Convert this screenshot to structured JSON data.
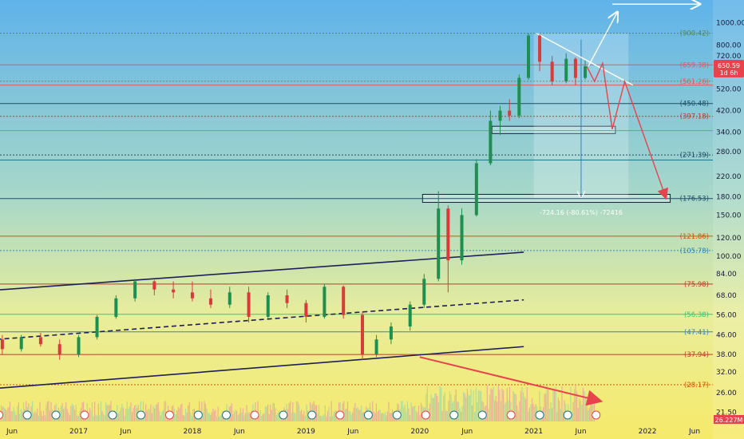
{
  "chart_data": {
    "type": "candlestick",
    "x_axis": {
      "ticks": [
        {
          "label": "Jun",
          "date": "2016-06-01"
        },
        {
          "label": "2017",
          "date": "2017-01-01"
        },
        {
          "label": "Jun",
          "date": "2017-06-01"
        },
        {
          "label": "2018",
          "date": "2018-01-01"
        },
        {
          "label": "Jun",
          "date": "2018-06-01"
        },
        {
          "label": "2019",
          "date": "2019-01-01"
        },
        {
          "label": "Jun",
          "date": "2019-06-01"
        },
        {
          "label": "2020",
          "date": "2020-01-01"
        },
        {
          "label": "Jun",
          "date": "2020-06-01"
        },
        {
          "label": "2021",
          "date": "2021-01-01"
        },
        {
          "label": "Jun",
          "date": "2021-06-01"
        },
        {
          "label": "2022",
          "date": "2022-01-01"
        },
        {
          "label": "Jun",
          "date": "2022-06-01"
        }
      ]
    },
    "y_axis": {
      "scale": "log",
      "range": [
        19,
        1250
      ],
      "ticks": [
        "1000.00",
        "800.00",
        "720.00",
        "520.00",
        "420.00",
        "340.00",
        "280.00",
        "220.00",
        "180.00",
        "150.00",
        "120.00",
        "100.00",
        "84.00",
        "68.00",
        "56.00",
        "46.00",
        "38.00",
        "32.00",
        "26.00",
        "21.50"
      ]
    },
    "price_levels": [
      {
        "value": 900.42,
        "label": "900.42",
        "color": "#4f8a4f",
        "style": "dotted"
      },
      {
        "value": 659.38,
        "label": "659.38",
        "color": "#e05a5a",
        "style": "solid"
      },
      {
        "value": 561.26,
        "label": "561.26",
        "color": "#e05a5a",
        "style": "dotted"
      },
      {
        "value": 540,
        "label": "",
        "color": "#e05a5a",
        "style": "solid"
      },
      {
        "value": 450.48,
        "label": "450.48",
        "color": "#1f4f66",
        "style": "solid"
      },
      {
        "value": 397.18,
        "label": "397.18",
        "color": "#c0392b",
        "style": "dotted"
      },
      {
        "value": 345,
        "label": "",
        "color": "#34c759",
        "style": "solid"
      },
      {
        "value": 271.39,
        "label": "271.39",
        "color": "#1f4f66",
        "style": "dotted"
      },
      {
        "value": 258,
        "label": "",
        "color": "#1a7a8a",
        "style": "solid"
      },
      {
        "value": 176.53,
        "label": "176.53",
        "color": "#1f4f66",
        "style": "solid"
      },
      {
        "value": 121.86,
        "label": "121.86",
        "color": "#d35400",
        "style": "solid"
      },
      {
        "value": 105.78,
        "label": "105.78",
        "color": "#2e86c1",
        "style": "dotted"
      },
      {
        "value": 75.98,
        "label": "75.98",
        "color": "#c0392b",
        "style": "solid"
      },
      {
        "value": 56.38,
        "label": "56.38",
        "color": "#2ecc71",
        "style": "solid"
      },
      {
        "value": 47.41,
        "label": "47.41",
        "color": "#2e86c1",
        "style": "solid"
      },
      {
        "value": 37.94,
        "label": "37.94",
        "color": "#c0392b",
        "style": "solid"
      },
      {
        "value": 28.17,
        "label": "28.17",
        "color": "#d35400",
        "style": "dotted"
      }
    ],
    "last_price": {
      "value": 650.59,
      "label": "650.59",
      "sublabel": "1d 6h",
      "color": "#e8424c"
    },
    "volume_label": {
      "label": "26.227M",
      "color": "#e8424c"
    },
    "measure_label": "-724.16 (-80.61%) -72416",
    "series": {
      "name": "",
      "ohlc": [
        [
          "2016-03-01",
          48,
          52,
          42,
          44
        ],
        [
          "2016-05-01",
          44,
          46,
          38,
          40
        ],
        [
          "2016-07-01",
          40,
          46,
          39,
          45
        ],
        [
          "2016-09-01",
          45,
          47,
          41,
          42
        ],
        [
          "2016-11-01",
          42,
          44,
          36,
          38
        ],
        [
          "2017-01-01",
          38,
          46,
          37,
          45
        ],
        [
          "2017-03-01",
          45,
          56,
          44,
          55
        ],
        [
          "2017-05-01",
          55,
          68,
          54,
          66
        ],
        [
          "2017-07-01",
          66,
          80,
          64,
          78
        ],
        [
          "2017-09-01",
          78,
          79,
          68,
          72
        ],
        [
          "2017-11-01",
          72,
          78,
          66,
          70
        ],
        [
          "2018-01-01",
          70,
          78,
          64,
          66
        ],
        [
          "2018-03-01",
          66,
          72,
          60,
          62
        ],
        [
          "2018-05-01",
          62,
          74,
          60,
          70
        ],
        [
          "2018-07-01",
          70,
          74,
          52,
          55
        ],
        [
          "2018-09-01",
          55,
          70,
          54,
          68
        ],
        [
          "2018-11-01",
          68,
          72,
          60,
          63
        ],
        [
          "2019-01-01",
          63,
          65,
          52,
          55
        ],
        [
          "2019-03-01",
          55,
          76,
          54,
          74
        ],
        [
          "2019-05-01",
          74,
          75,
          54,
          56
        ],
        [
          "2019-07-01",
          56,
          58,
          36,
          38
        ],
        [
          "2019-08-15",
          38,
          46,
          37,
          44
        ],
        [
          "2019-10-01",
          44,
          52,
          42,
          50
        ],
        [
          "2019-12-01",
          50,
          64,
          48,
          62
        ],
        [
          "2020-01-15",
          62,
          84,
          60,
          80
        ],
        [
          "2020-03-01",
          80,
          190,
          78,
          160
        ],
        [
          "2020-04-01",
          160,
          165,
          70,
          96
        ],
        [
          "2020-05-15",
          96,
          160,
          92,
          150
        ],
        [
          "2020-07-01",
          150,
          260,
          148,
          250
        ],
        [
          "2020-08-15",
          250,
          420,
          245,
          380
        ],
        [
          "2020-09-15",
          380,
          440,
          330,
          420
        ],
        [
          "2020-10-15",
          420,
          470,
          380,
          400
        ],
        [
          "2020-11-15",
          400,
          600,
          390,
          580
        ],
        [
          "2020-12-15",
          580,
          900,
          570,
          880
        ],
        [
          "2021-01-20",
          880,
          890,
          620,
          680
        ],
        [
          "2021-03-01",
          680,
          720,
          540,
          560
        ],
        [
          "2021-04-15",
          560,
          740,
          550,
          700
        ],
        [
          "2021-05-15",
          700,
          710,
          540,
          580
        ],
        [
          "2021-06-15",
          580,
          690,
          570,
          650
        ]
      ]
    },
    "annotations": [
      {
        "kind": "projection",
        "color": "#ffffff",
        "points": [
          [
            "2021-06-25",
            650
          ],
          [
            "2021-09-25",
            1100
          ]
        ]
      },
      {
        "kind": "level-arrow",
        "color": "#ffffff",
        "points": [
          [
            "2021-09-10",
            1200
          ],
          [
            "2022-06-15",
            1200
          ]
        ]
      },
      {
        "kind": "trendline",
        "color": "#ffffff",
        "points": [
          [
            "2021-01-10",
            900
          ],
          [
            "2021-11-15",
            540
          ]
        ]
      },
      {
        "kind": "projection",
        "color": "#e8424c",
        "points": [
          [
            "2021-06-20",
            650
          ],
          [
            "2021-07-15",
            560
          ],
          [
            "2021-08-10",
            670
          ],
          [
            "2021-09-10",
            350
          ],
          [
            "2021-10-20",
            560
          ],
          [
            "2022-03-01",
            178
          ]
        ]
      },
      {
        "kind": "trendline",
        "color": "#1e1e5a",
        "points": [
          [
            "2016-01-01",
            70
          ],
          [
            "2020-11-30",
            104
          ]
        ]
      },
      {
        "kind": "trendline",
        "color": "#1e1e5a",
        "points": [
          [
            "2016-01-01",
            26.5
          ],
          [
            "2020-11-30",
            41
          ]
        ]
      },
      {
        "kind": "trendline-dashed",
        "color": "#1e1e5a",
        "points": [
          [
            "2016-01-01",
            43
          ],
          [
            "2020-11-30",
            65
          ]
        ]
      },
      {
        "kind": "arrow",
        "color": "#e8424c",
        "points": [
          [
            "2020-01-01",
            37
          ],
          [
            "2021-08-01",
            24
          ]
        ]
      },
      {
        "kind": "zone",
        "color": "#ffffff",
        "range": [
          [
            "2020-08-20",
            360
          ],
          [
            "2021-09-20",
            335
          ]
        ]
      },
      {
        "kind": "zone",
        "color": "#ffffff",
        "range": [
          [
            "2020-01-10",
            184
          ],
          [
            "2022-03-15",
            170
          ]
        ]
      },
      {
        "kind": "measure-box",
        "color": "#ffffff",
        "range": [
          [
            "2021-01-01",
            900
          ],
          [
            "2021-11-01",
            176
          ]
        ]
      }
    ],
    "earnings_markers": [
      "2016-01-15",
      "2016-04-20",
      "2016-07-20",
      "2016-10-20",
      "2017-01-20",
      "2017-04-20",
      "2017-07-20",
      "2017-10-20",
      "2018-01-20",
      "2018-04-20",
      "2018-07-20",
      "2018-10-20",
      "2019-01-20",
      "2019-04-20",
      "2019-07-20",
      "2019-10-20",
      "2020-01-20",
      "2020-04-20",
      "2020-07-20",
      "2020-10-20",
      "2021-01-20",
      "2021-04-20",
      "2021-07-20"
    ],
    "grid": false,
    "legend": "none"
  }
}
